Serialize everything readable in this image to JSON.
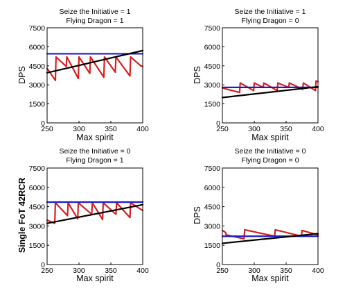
{
  "chart_data": [
    {
      "type": "line",
      "title_lines": [
        "Seize the Initiative = 1",
        "Flying Dragon = 1"
      ],
      "xlabel": "Max spirit",
      "ylabel": "DPS",
      "ylabel_bold": false,
      "xlim": [
        250,
        400
      ],
      "ylim": [
        0,
        7500
      ],
      "xticks": [
        250,
        300,
        350,
        400
      ],
      "yticks": [
        0,
        1500,
        3000,
        4500,
        6000,
        7500
      ],
      "series": [
        {
          "color": "#d42020",
          "x": [
            250,
            263,
            264,
            280,
            281,
            299,
            300,
            317,
            318,
            339,
            340,
            357,
            358,
            380,
            381,
            397,
            400
          ],
          "y": [
            4300,
            3350,
            5200,
            4450,
            5200,
            3500,
            5200,
            3900,
            5200,
            3600,
            5200,
            4000,
            5200,
            3700,
            5200,
            4500,
            4450
          ]
        },
        {
          "color": "#1a1acc",
          "x": [
            250,
            400
          ],
          "y": [
            5450,
            5450
          ]
        },
        {
          "color": "#000000",
          "x": [
            250,
            400
          ],
          "y": [
            3950,
            5700
          ]
        }
      ]
    },
    {
      "type": "line",
      "title_lines": [
        "Seize the Initiative = 1",
        "Flying Dragon = 0"
      ],
      "xlabel": "Max spirit",
      "ylabel": "DPS",
      "ylabel_bold": false,
      "xlim": [
        250,
        400
      ],
      "ylim": [
        0,
        7500
      ],
      "xticks": [
        250,
        300,
        350,
        400
      ],
      "yticks": [
        0,
        1500,
        3000,
        4500,
        6000,
        7500
      ],
      "series": [
        {
          "color": "#d42020",
          "x": [
            250,
            277,
            278,
            299,
            300,
            314,
            315,
            336,
            337,
            354,
            355,
            376,
            377,
            396,
            397,
            400
          ],
          "y": [
            2750,
            2400,
            3150,
            2550,
            3150,
            2800,
            3150,
            2550,
            3150,
            2800,
            3150,
            2650,
            3150,
            2550,
            3300,
            3250
          ]
        },
        {
          "color": "#1a1acc",
          "x": [
            250,
            400
          ],
          "y": [
            2800,
            2800
          ]
        },
        {
          "color": "#000000",
          "x": [
            250,
            400
          ],
          "y": [
            2000,
            2850
          ]
        }
      ]
    },
    {
      "type": "line",
      "title_lines": [
        "Seize the Initiative = 0",
        "Flying Dragon = 1"
      ],
      "xlabel": "Max spirit",
      "ylabel": "Single FoT 42RCR",
      "ylabel_bold": true,
      "xlim": [
        250,
        400
      ],
      "ylim": [
        0,
        7500
      ],
      "xticks": [
        250,
        300,
        350,
        400
      ],
      "yticks": [
        0,
        1500,
        3000,
        4500,
        6000,
        7500
      ],
      "series": [
        {
          "color": "#d42020",
          "x": [
            250,
            262,
            263,
            282,
            283,
            298,
            299,
            320,
            321,
            337,
            338,
            358,
            359,
            380,
            381,
            400
          ],
          "y": [
            3450,
            3200,
            4800,
            3800,
            4800,
            3550,
            4800,
            3900,
            4800,
            3500,
            4800,
            3900,
            4800,
            3650,
            4800,
            4200
          ]
        },
        {
          "color": "#1a1acc",
          "x": [
            250,
            400
          ],
          "y": [
            4850,
            4850
          ]
        },
        {
          "color": "#000000",
          "x": [
            250,
            400
          ],
          "y": [
            3200,
            4650
          ]
        }
      ]
    },
    {
      "type": "line",
      "title_lines": [
        "Seize the Initiative = 0",
        "Flying Dragon = 0"
      ],
      "xlabel": "Max spirit",
      "ylabel": "DPS",
      "ylabel_bold": false,
      "xlim": [
        250,
        400
      ],
      "ylim": [
        0,
        7500
      ],
      "xticks": [
        250,
        300,
        350,
        400
      ],
      "yticks": [
        0,
        1500,
        3000,
        4500,
        6000,
        7500
      ],
      "series": [
        {
          "color": "#d42020",
          "x": [
            250,
            255,
            256,
            284,
            285,
            332,
            333,
            374,
            375,
            400
          ],
          "y": [
            2650,
            2500,
            2300,
            2000,
            2700,
            2200,
            2700,
            2200,
            2650,
            2300
          ]
        },
        {
          "color": "#1a1acc",
          "x": [
            250,
            400
          ],
          "y": [
            2200,
            2200
          ]
        },
        {
          "color": "#000000",
          "x": [
            250,
            400
          ],
          "y": [
            1650,
            2400
          ]
        }
      ]
    }
  ]
}
